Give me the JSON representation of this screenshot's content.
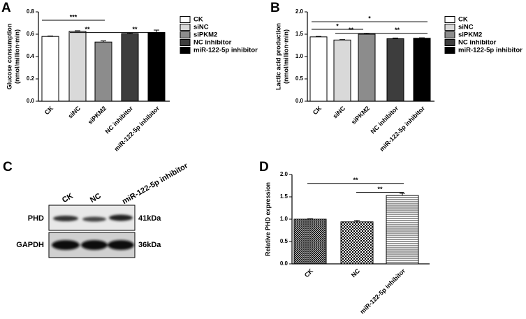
{
  "chart_data": [
    {
      "type": "bar",
      "panel_label": "A",
      "y_label": [
        "Glucose consumption",
        "(nmol/million·min)"
      ],
      "categories": [
        "CK",
        "siNC",
        "siPKM2",
        "NC inhibitor",
        "miR-122-5p inhibitor"
      ],
      "values": [
        0.58,
        0.625,
        0.53,
        0.605,
        0.615
      ],
      "errors": [
        0.004,
        0.006,
        0.01,
        0.007,
        0.022
      ],
      "colors": [
        "#ffffff",
        "#d9d9d9",
        "#8c8c8c",
        "#3d3d3d",
        "#000000"
      ],
      "ylim": [
        0,
        0.8
      ],
      "yticks": [
        {
          "value": 0,
          "label": "0.0"
        },
        {
          "value": 0.2,
          "label": "0.2"
        },
        {
          "value": 0.4,
          "label": "0.4"
        },
        {
          "value": 0.6,
          "label": "0.6"
        },
        {
          "value": 0.8,
          "label": "0.8"
        }
      ],
      "legend": true,
      "annotations": [
        "***",
        "**",
        "**"
      ]
    },
    {
      "type": "bar",
      "panel_label": "B",
      "y_label": [
        "Lactic acid production",
        "(nmol/million·min)"
      ],
      "categories": [
        "CK",
        "siNC",
        "siPKM2",
        "NC inhibitor",
        "miR-122-5p inhibitor"
      ],
      "values": [
        1.44,
        1.37,
        1.5,
        1.4,
        1.41
      ],
      "errors": [
        0.01,
        0.01,
        0.02,
        0.015,
        0.01
      ],
      "colors": [
        "#ffffff",
        "#d9d9d9",
        "#8c8c8c",
        "#3d3d3d",
        "#000000"
      ],
      "ylim": [
        0,
        2
      ],
      "yticks": [
        {
          "value": 0,
          "label": "0.0"
        },
        {
          "value": 0.5,
          "label": "0.5"
        },
        {
          "value": 1,
          "label": "1.0"
        },
        {
          "value": 1.5,
          "label": "1.5"
        },
        {
          "value": 2,
          "label": "2.0"
        }
      ],
      "legend": true,
      "annotations": [
        "*",
        "*",
        "**",
        "**"
      ]
    },
    {
      "type": "bar",
      "panel_label": "D",
      "y_label": [
        "Relative PHD expression"
      ],
      "categories": [
        "CK",
        "NC",
        "miR-122-5p inhibitor"
      ],
      "values": [
        1.0,
        0.94,
        1.53
      ],
      "errors": [
        0.01,
        0.03,
        0.05
      ],
      "patterns": [
        "crosshatch",
        "checker",
        "hlines"
      ],
      "ylim": [
        0,
        2
      ],
      "yticks": [
        {
          "value": 0,
          "label": "0.0"
        },
        {
          "value": 0.5,
          "label": "0.5"
        },
        {
          "value": 1,
          "label": "1.0"
        },
        {
          "value": 1.5,
          "label": "1.5"
        },
        {
          "value": 2,
          "label": "2.0"
        }
      ],
      "legend": false,
      "annotations": [
        "**",
        "**"
      ]
    }
  ],
  "blot": {
    "panel_label": "C",
    "lanes": [
      "CK",
      "NC",
      "miR-122-5p inhibitor"
    ],
    "proteins": [
      "PHD",
      "GAPDH"
    ],
    "sizes": [
      "41kDa",
      "36kDa"
    ]
  }
}
